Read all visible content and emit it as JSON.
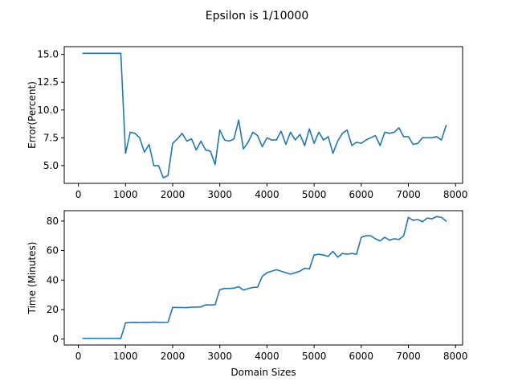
{
  "figure": {
    "title": "Epsilon is 1/10000"
  },
  "chart_data": [
    {
      "type": "line",
      "title": "",
      "xlabel": "",
      "ylabel": "Error(Percent)",
      "xlim": [
        -300,
        8150
      ],
      "ylim": [
        3.4,
        15.7
      ],
      "xticks": [
        0,
        1000,
        2000,
        3000,
        4000,
        5000,
        6000,
        7000,
        8000
      ],
      "xtick_labels": [
        "0",
        "1000",
        "2000",
        "3000",
        "4000",
        "5000",
        "6000",
        "7000",
        "8000"
      ],
      "yticks": [
        5.0,
        7.5,
        10.0,
        12.5,
        15.0
      ],
      "ytick_labels": [
        "5.0",
        "7.5",
        "10.0",
        "12.5",
        "15.0"
      ],
      "grid": false,
      "color": "#1f77b4",
      "series": [
        {
          "x": [
            100,
            200,
            300,
            400,
            500,
            600,
            700,
            800,
            900,
            1000,
            1100,
            1200,
            1300,
            1400,
            1500,
            1600,
            1700,
            1800,
            1900,
            2000,
            2100,
            2200,
            2300,
            2400,
            2500,
            2600,
            2700,
            2800,
            2900,
            3000,
            3100,
            3200,
            3300,
            3400,
            3500,
            3600,
            3700,
            3800,
            3900,
            4000,
            4100,
            4200,
            4300,
            4400,
            4500,
            4600,
            4700,
            4800,
            4900,
            5000,
            5100,
            5200,
            5300,
            5400,
            5500,
            5600,
            5700,
            5800,
            5900,
            6000,
            6100,
            6200,
            6300,
            6400,
            6500,
            6600,
            6700,
            6800,
            6900,
            7000,
            7100,
            7200,
            7300,
            7400,
            7500,
            7600,
            7700,
            7800
          ],
          "y": [
            15.1,
            15.1,
            15.1,
            15.1,
            15.1,
            15.1,
            15.1,
            15.1,
            15.1,
            6.1,
            8.0,
            7.9,
            7.5,
            6.2,
            6.9,
            5.0,
            5.0,
            3.9,
            4.1,
            7.0,
            7.4,
            7.9,
            7.2,
            7.4,
            6.4,
            7.2,
            6.4,
            6.3,
            5.1,
            8.2,
            7.3,
            7.2,
            7.4,
            9.1,
            6.5,
            7.1,
            8.0,
            7.7,
            6.7,
            7.5,
            7.3,
            7.3,
            8.1,
            6.9,
            8.0,
            7.3,
            7.8,
            6.8,
            8.3,
            7.0,
            8.0,
            7.3,
            7.6,
            6.1,
            7.2,
            7.9,
            8.2,
            6.8,
            7.1,
            7.0,
            7.3,
            7.5,
            7.7,
            6.8,
            8.0,
            7.9,
            8.0,
            8.4,
            7.6,
            7.6,
            6.9,
            7.0,
            7.5,
            7.5,
            7.5,
            7.6,
            7.3,
            8.6
          ]
        }
      ]
    },
    {
      "type": "line",
      "title": "",
      "xlabel": "Domain Sizes",
      "ylabel": "Time (Minutes)",
      "xlim": [
        -300,
        8150
      ],
      "ylim": [
        -4,
        87
      ],
      "xticks": [
        0,
        1000,
        2000,
        3000,
        4000,
        5000,
        6000,
        7000,
        8000
      ],
      "xtick_labels": [
        "0",
        "1000",
        "2000",
        "3000",
        "4000",
        "5000",
        "6000",
        "7000",
        "8000"
      ],
      "yticks": [
        0,
        20,
        40,
        60,
        80
      ],
      "ytick_labels": [
        "0",
        "20",
        "40",
        "60",
        "80"
      ],
      "grid": false,
      "color": "#1f77b4",
      "series": [
        {
          "x": [
            100,
            200,
            300,
            400,
            500,
            600,
            700,
            800,
            900,
            1000,
            1100,
            1200,
            1300,
            1400,
            1500,
            1600,
            1700,
            1800,
            1900,
            2000,
            2100,
            2200,
            2300,
            2400,
            2500,
            2600,
            2700,
            2800,
            2900,
            3000,
            3100,
            3200,
            3300,
            3400,
            3500,
            3600,
            3700,
            3800,
            3900,
            4000,
            4100,
            4200,
            4300,
            4400,
            4500,
            4600,
            4700,
            4800,
            4900,
            5000,
            5100,
            5200,
            5300,
            5400,
            5500,
            5600,
            5700,
            5800,
            5900,
            6000,
            6100,
            6200,
            6300,
            6400,
            6500,
            6600,
            6700,
            6800,
            6900,
            7000,
            7100,
            7200,
            7300,
            7400,
            7500,
            7600,
            7700,
            7800
          ],
          "y": [
            0.5,
            0.5,
            0.5,
            0.5,
            0.5,
            0.5,
            0.5,
            0.5,
            0.5,
            11.0,
            11.2,
            11.3,
            11.2,
            11.3,
            11.3,
            11.5,
            11.3,
            11.3,
            11.4,
            21.5,
            21.4,
            21.4,
            21.3,
            21.6,
            21.7,
            21.8,
            23.2,
            23.1,
            23.3,
            33.5,
            34.3,
            34.3,
            34.5,
            35.5,
            33.2,
            34.2,
            35.0,
            35.2,
            42.5,
            45.0,
            46.0,
            47.0,
            46.0,
            45.0,
            44.0,
            45.0,
            46.0,
            48.0,
            47.5,
            57.0,
            57.5,
            57.0,
            56.0,
            59.5,
            55.5,
            58.0,
            57.5,
            58.0,
            57.5,
            69.0,
            70.0,
            70.0,
            68.0,
            66.5,
            69.0,
            67.0,
            68.0,
            67.5,
            70.0,
            82.5,
            80.5,
            81.0,
            79.5,
            82.0,
            81.5,
            83.0,
            82.5,
            80.0
          ]
        }
      ]
    }
  ]
}
